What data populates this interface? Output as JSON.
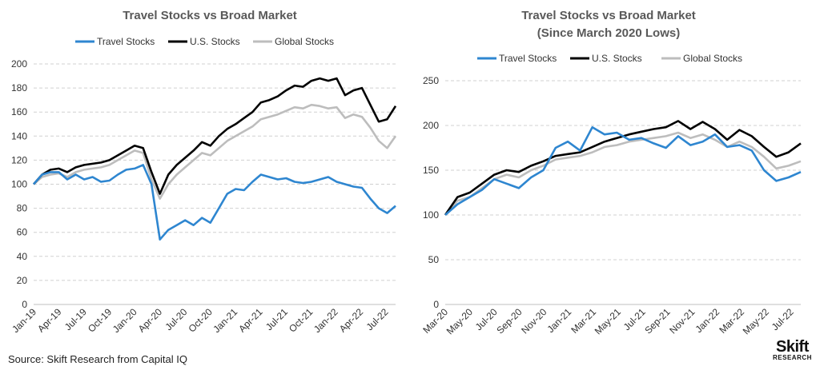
{
  "source": "Source: Skift Research from Capital IQ",
  "logo": {
    "brand": "Skift",
    "sub": "RESEARCH"
  },
  "colors": {
    "travel": "#2e86d0",
    "us": "#000000",
    "global": "#bdbdbd"
  },
  "chart_data": [
    {
      "type": "line",
      "title": "Travel Stocks vs Broad Market",
      "subtitle": "",
      "xlabel": "",
      "ylabel": "",
      "ylim": [
        0,
        200
      ],
      "yticks": [
        0,
        20,
        40,
        60,
        80,
        100,
        120,
        140,
        160,
        180,
        200
      ],
      "grid": true,
      "legend": "top",
      "x_range": [
        "Jan-19",
        "Jul-22+"
      ],
      "xtick_labels": [
        "Jan-19",
        "Apr-19",
        "Jul-19",
        "Oct-19",
        "Jan-20",
        "Apr-20",
        "Jul-20",
        "Oct-20",
        "Jan-21",
        "Apr-21",
        "Jul-21",
        "Oct-21",
        "Jan-22",
        "Apr-22",
        "Jul-22"
      ],
      "x": [
        "Jan-19",
        "Feb-19",
        "Mar-19",
        "Apr-19",
        "May-19",
        "Jun-19",
        "Jul-19",
        "Aug-19",
        "Sep-19",
        "Oct-19",
        "Nov-19",
        "Dec-19",
        "Jan-20",
        "Feb-20",
        "Mar-20",
        "Apr-20",
        "May-20",
        "Jun-20",
        "Jul-20",
        "Aug-20",
        "Sep-20",
        "Oct-20",
        "Nov-20",
        "Dec-20",
        "Jan-21",
        "Feb-21",
        "Mar-21",
        "Apr-21",
        "May-21",
        "Jun-21",
        "Jul-21",
        "Aug-21",
        "Sep-21",
        "Oct-21",
        "Nov-21",
        "Dec-21",
        "Jan-22",
        "Feb-22",
        "Mar-22",
        "Apr-22",
        "May-22",
        "Jun-22",
        "Jul-22",
        "Aug-22"
      ],
      "series": [
        {
          "name": "Travel Stocks",
          "color_key": "travel",
          "values": [
            100,
            108,
            110,
            110,
            104,
            108,
            104,
            106,
            102,
            103,
            108,
            112,
            113,
            116,
            100,
            54,
            62,
            66,
            70,
            66,
            72,
            68,
            80,
            92,
            96,
            95,
            102,
            108,
            106,
            104,
            105,
            102,
            101,
            102,
            104,
            106,
            102,
            100,
            98,
            97,
            88,
            80,
            76,
            82
          ]
        },
        {
          "name": "U.S. Stocks",
          "color_key": "us",
          "values": [
            100,
            108,
            112,
            113,
            110,
            114,
            116,
            117,
            118,
            120,
            124,
            128,
            132,
            130,
            110,
            92,
            108,
            116,
            122,
            128,
            135,
            132,
            140,
            146,
            150,
            155,
            160,
            168,
            170,
            173,
            178,
            182,
            181,
            186,
            188,
            186,
            188,
            174,
            178,
            180,
            166,
            152,
            154,
            165
          ]
        },
        {
          "name": "Global Stocks",
          "color_key": "global",
          "values": [
            100,
            106,
            108,
            109,
            106,
            110,
            112,
            113,
            114,
            116,
            120,
            124,
            128,
            126,
            104,
            88,
            100,
            108,
            114,
            120,
            126,
            124,
            130,
            136,
            140,
            144,
            148,
            154,
            156,
            158,
            161,
            164,
            163,
            166,
            165,
            163,
            164,
            155,
            158,
            156,
            147,
            136,
            130,
            140
          ]
        }
      ]
    },
    {
      "type": "line",
      "title": "Travel Stocks vs Broad Market",
      "subtitle": "(Since March 2020 Lows)",
      "xlabel": "",
      "ylabel": "",
      "ylim": [
        0,
        250
      ],
      "yticks": [
        0,
        50,
        100,
        150,
        200,
        250
      ],
      "grid": true,
      "legend": "top",
      "xtick_labels": [
        "Mar-20",
        "May-20",
        "Jul-20",
        "Sep-20",
        "Nov-20",
        "Jan-21",
        "Mar-21",
        "May-21",
        "Jul-21",
        "Sep-21",
        "Nov-21",
        "Jan-22",
        "Mar-22",
        "May-22",
        "Jul-22"
      ],
      "x": [
        "Mar-20",
        "Apr-20",
        "May-20",
        "Jun-20",
        "Jul-20",
        "Aug-20",
        "Sep-20",
        "Oct-20",
        "Nov-20",
        "Dec-20",
        "Jan-21",
        "Feb-21",
        "Mar-21",
        "Apr-21",
        "May-21",
        "Jun-21",
        "Jul-21",
        "Aug-21",
        "Sep-21",
        "Oct-21",
        "Nov-21",
        "Dec-21",
        "Jan-22",
        "Feb-22",
        "Mar-22",
        "Apr-22",
        "May-22",
        "Jun-22",
        "Jul-22",
        "Aug-22"
      ],
      "series": [
        {
          "name": "Travel Stocks",
          "color_key": "travel",
          "values": [
            100,
            112,
            120,
            128,
            140,
            135,
            130,
            142,
            150,
            175,
            182,
            172,
            198,
            190,
            192,
            184,
            186,
            180,
            175,
            188,
            178,
            182,
            190,
            176,
            178,
            172,
            150,
            138,
            142,
            148
          ]
        },
        {
          "name": "U.S. Stocks",
          "color_key": "us",
          "values": [
            100,
            120,
            125,
            135,
            145,
            150,
            148,
            155,
            160,
            166,
            168,
            170,
            176,
            182,
            186,
            190,
            193,
            196,
            198,
            205,
            196,
            204,
            196,
            184,
            195,
            188,
            176,
            165,
            170,
            180
          ]
        },
        {
          "name": "Global Stocks",
          "color_key": "global",
          "values": [
            100,
            116,
            120,
            130,
            140,
            145,
            142,
            150,
            155,
            162,
            164,
            166,
            170,
            176,
            178,
            182,
            184,
            186,
            188,
            192,
            186,
            190,
            184,
            176,
            182,
            176,
            165,
            152,
            155,
            160
          ]
        }
      ]
    }
  ]
}
